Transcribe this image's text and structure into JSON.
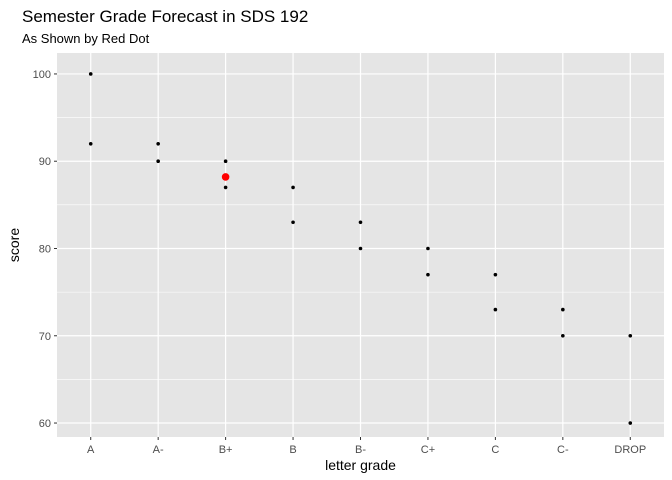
{
  "chart_data": {
    "type": "scatter",
    "title": "Semester Grade Forecast in SDS 192",
    "subtitle": "As Shown by Red Dot",
    "xlabel": "letter grade",
    "ylabel": "score",
    "categories": [
      "A",
      "A-",
      "B+",
      "B",
      "B-",
      "C+",
      "C",
      "C-",
      "DROP"
    ],
    "ylim": [
      58.4,
      102.4
    ],
    "yticks": [
      60,
      70,
      80,
      90,
      100
    ],
    "grid": true,
    "panel_background": "#e5e5e5",
    "grid_color": "#ffffff",
    "series": [
      {
        "color": "#000000",
        "points": [
          {
            "x": "A",
            "y": 100
          },
          {
            "x": "A",
            "y": 92
          },
          {
            "x": "A-",
            "y": 92
          },
          {
            "x": "A-",
            "y": 90
          },
          {
            "x": "B+",
            "y": 90
          },
          {
            "x": "B+",
            "y": 87
          },
          {
            "x": "B",
            "y": 87
          },
          {
            "x": "B",
            "y": 83
          },
          {
            "x": "B-",
            "y": 83
          },
          {
            "x": "B-",
            "y": 80
          },
          {
            "x": "C+",
            "y": 80
          },
          {
            "x": "C+",
            "y": 77
          },
          {
            "x": "C",
            "y": 77
          },
          {
            "x": "C",
            "y": 73
          },
          {
            "x": "C-",
            "y": 73
          },
          {
            "x": "C-",
            "y": 70
          },
          {
            "x": "DROP",
            "y": 70
          },
          {
            "x": "DROP",
            "y": 60
          }
        ]
      },
      {
        "color": "#ff0000",
        "points": [
          {
            "x": "B+",
            "y": 88.2
          }
        ]
      }
    ]
  }
}
